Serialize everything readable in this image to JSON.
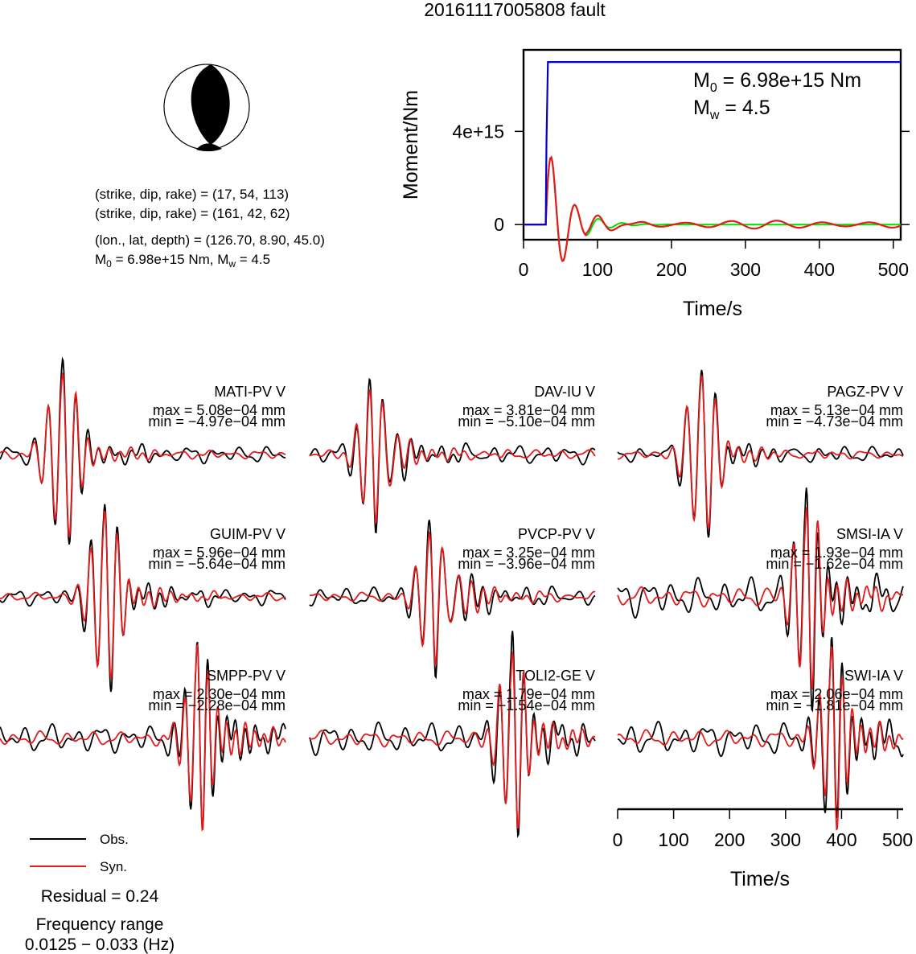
{
  "title": "20161117005808 fault",
  "info": {
    "line1": "(strike, dip, rake) = (17, 54, 113)",
    "line2": "(strike, dip, rake) = (161, 42, 62)",
    "line3": "(lon., lat, depth) = (126.70, 8.90, 45.0)",
    "m0_prefix": "M",
    "m0_sub": "0",
    "m0_mid": " = 6.98e+15 Nm, M",
    "mw_sub": "w",
    "mw_tail": " = 4.5"
  },
  "moment": {
    "m0_prefix": "M",
    "m0_sub": "0",
    "m0_tail": " = 6.98e+15 Nm",
    "mw_prefix": "M",
    "mw_sub": "w",
    "mw_tail": " = 4.5",
    "ylabel": "Moment/Nm",
    "xlabel": "Time/s"
  },
  "waveform_axis": {
    "xlabel": "Time/s"
  },
  "legend": {
    "obs": "Obs.",
    "syn": "Syn."
  },
  "residual": "Residual = 0.24",
  "freq_title": "Frequency range",
  "freq_range": "0.0125 − 0.033 (Hz)",
  "colors": {
    "obs": "#000000",
    "syn": "#e41a1c",
    "moment": "#0000cc",
    "stf": "#00dd00",
    "stf_syn": "#e41a1c"
  },
  "chart_data": [
    {
      "type": "line",
      "name": "moment-function",
      "xlabel": "Time/s",
      "ylabel": "Moment/Nm",
      "xlim": [
        0,
        510
      ],
      "ylim": [
        -650000000000000.0,
        7500000000000000.0
      ],
      "xticks": [
        0,
        100,
        200,
        300,
        400,
        500
      ],
      "xtick_labels": [
        "0",
        "100",
        "200",
        "300",
        "400",
        "500"
      ],
      "yticks": [
        0,
        4000000000000000.0
      ],
      "ytick_labels": [
        "0",
        "4e+15"
      ],
      "moment": {
        "x": [
          0,
          30,
          31,
          33,
          510
        ],
        "y": [
          0,
          0,
          3500000000000000.0,
          6980000000000000.0,
          6980000000000000.0
        ]
      },
      "stf": {
        "onset": 30,
        "amp": 2500000000000000.0,
        "period": 32,
        "decay": 26
      },
      "stf_syn": {
        "onset": 30,
        "amp": 2500000000000000.0,
        "period": 32,
        "decay": 26,
        "ripple_amp": 160000000000000.0,
        "ripple_period": 62
      }
    },
    {
      "type": "line",
      "name": "waveforms",
      "xlabel": "Time/s",
      "xlim": [
        0,
        510
      ],
      "xticks": [
        0,
        100,
        200,
        300,
        400,
        500
      ],
      "xtick_labels": [
        "0",
        "100",
        "200",
        "300",
        "400",
        "500"
      ],
      "stations": [
        {
          "name": "MATI-PV V",
          "max": "max = 5.08e−04 mm",
          "min": "min = −4.97e−04 mm",
          "t0": 110,
          "period": 25,
          "tail": 0.35,
          "noise": 0.07,
          "flip": 1
        },
        {
          "name": "DAV-IU V",
          "max": "max = 3.81e−04 mm",
          "min": "min = −5.10e−04 mm",
          "t0": 118,
          "period": 24,
          "tail": 0.32,
          "noise": 0.08,
          "flip": -1
        },
        {
          "name": "PAGZ-PV V",
          "max": "max = 5.13e−04 mm",
          "min": "min = −4.73e−04 mm",
          "t0": 148,
          "period": 26,
          "tail": 0.3,
          "noise": 0.07,
          "flip": 1
        },
        {
          "name": "GUIM-PV V",
          "max": "max = 5.96e−04 mm",
          "min": "min = −5.64e−04 mm",
          "t0": 185,
          "period": 24,
          "tail": 0.4,
          "noise": 0.07,
          "flip": 1
        },
        {
          "name": "PVCP-PV V",
          "max": "max = 3.25e−04 mm",
          "min": "min = −3.96e−04 mm",
          "t0": 225,
          "period": 25,
          "tail": 0.45,
          "noise": 0.08,
          "flip": -1
        },
        {
          "name": "SMSI-IA V",
          "max": "max = 1.93e−04 mm",
          "min": "min = −1.62e−04 mm",
          "t0": 335,
          "period": 22,
          "tail": 0.55,
          "noise": 0.16,
          "flip": 1
        },
        {
          "name": "SMPP-PV V",
          "max": "max = 2.30e−04 mm",
          "min": "min = −2.28e−04 mm",
          "t0": 350,
          "period": 21,
          "tail": 0.6,
          "noise": 0.12,
          "flip": 1
        },
        {
          "name": "TOLI2-GE V",
          "max": "max = 1.79e−04 mm",
          "min": "min = −1.54e−04 mm",
          "t0": 360,
          "period": 22,
          "tail": 0.5,
          "noise": 0.13,
          "flip": 1
        },
        {
          "name": "SWI-IA V",
          "max": "max = 2.06e−04 mm",
          "min": "min = −1.81e−04 mm",
          "t0": 380,
          "period": 21,
          "tail": 0.55,
          "noise": 0.14,
          "flip": 1
        }
      ]
    }
  ]
}
